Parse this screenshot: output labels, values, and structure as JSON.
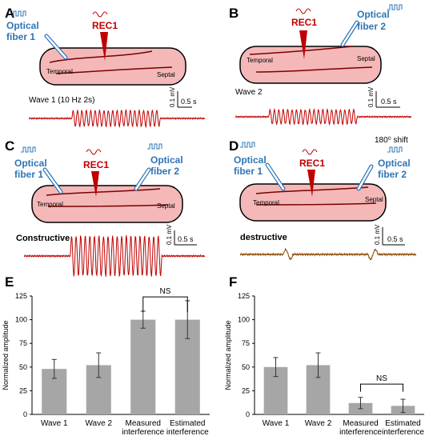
{
  "panels": {
    "A": {
      "letter": "A",
      "fiber": "Optical\nfiber 1",
      "rec": "REC1",
      "temporal": "Temporal",
      "septal": "Septal",
      "wave": "Wave 1 (10 Hz 2s)",
      "scale_v": "0.1 mV",
      "scale_t": "0.5 s"
    },
    "B": {
      "letter": "B",
      "fiber": "Optical\nfiber 2",
      "rec": "REC1",
      "temporal": "Temporal",
      "septal": "Septal",
      "wave": "Wave 2",
      "scale_v": "0.1 mV",
      "scale_t": "0.5 s"
    },
    "C": {
      "letter": "C",
      "fiber1": "Optical\nfiber 1",
      "fiber2": "Optical\nfiber 2",
      "rec": "REC1",
      "temporal": "Temporal",
      "septal": "Septal",
      "wave": "Constructive",
      "scale_v": "0.1 mV",
      "scale_t": "0.5 s"
    },
    "D": {
      "letter": "D",
      "fiber1": "Optical\nfiber 1",
      "fiber2": "Optical\nfiber 2",
      "rec": "REC1",
      "temporal": "Temporal",
      "septal": "Septal",
      "wave": "destructive",
      "scale_v": "0.1 mV",
      "scale_t": "0.5 s",
      "shift": "180⁰ shift"
    }
  },
  "chart_data": [
    {
      "panel": "E",
      "type": "bar",
      "categories": [
        "Wave 1",
        "Wave 2",
        "Measured\ninterference",
        "Estimated\ninterference"
      ],
      "values": [
        48,
        52,
        100,
        100
      ],
      "errors": [
        10,
        13,
        9,
        20
      ],
      "ylabel": "Normalized amplitude",
      "ylim": [
        0,
        125
      ],
      "yticks": [
        "0",
        "25",
        "50",
        "75",
        "100",
        "125"
      ],
      "significance": {
        "between": [
          2,
          3
        ],
        "label": "NS"
      }
    },
    {
      "panel": "F",
      "type": "bar",
      "categories": [
        "Wave 1",
        "Wave 2",
        "Measured\ninterference",
        "Estimated\ninterference"
      ],
      "values": [
        50,
        52,
        12,
        9
      ],
      "errors": [
        10,
        13,
        6,
        7
      ],
      "ylabel": "Normalized amplitude",
      "ylim": [
        0,
        125
      ],
      "yticks": [
        "0",
        "25",
        "50",
        "75",
        "100",
        "125"
      ],
      "significance": {
        "between": [
          2,
          3
        ],
        "label": "NS"
      }
    }
  ],
  "colors": {
    "bar": "#a6a6a6",
    "trace": "#c00000",
    "trace_dark": "#5a3200",
    "fiber": "#2e75b6",
    "rec": "#c00000",
    "tissue": "#f4b8b8"
  }
}
